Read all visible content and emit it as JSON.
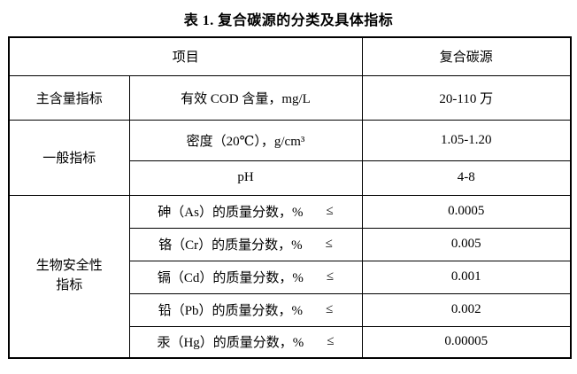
{
  "title": "表 1. 复合碳源的分类及具体指标",
  "table": {
    "header": {
      "item": "项目",
      "product": "复合碳源"
    },
    "groups": {
      "main_content": "主含量指标",
      "general": "一般指标",
      "bio_safety_line1": "生物安全性",
      "bio_safety_line2": "指标"
    },
    "rows": [
      {
        "param": "有效 COD 含量，mg/L",
        "leq": "",
        "value": "20-110 万"
      },
      {
        "param": "密度（20℃），g/cm³",
        "leq": "",
        "value": "1.05-1.20"
      },
      {
        "param": "pH",
        "leq": "",
        "value": "4-8"
      },
      {
        "param": "砷（As）的质量分数，%",
        "leq": "≤",
        "value": "0.0005"
      },
      {
        "param": "铬（Cr）的质量分数，%",
        "leq": "≤",
        "value": "0.005"
      },
      {
        "param": "镉（Cd）的质量分数，%",
        "leq": "≤",
        "value": "0.001"
      },
      {
        "param": "铅（Pb）的质量分数，%",
        "leq": "≤",
        "value": "0.002"
      },
      {
        "param": "汞（Hg）的质量分数，%",
        "leq": "≤",
        "value": "0.00005"
      }
    ]
  },
  "colors": {
    "text": "#000000",
    "border": "#000000",
    "background": "#ffffff"
  }
}
